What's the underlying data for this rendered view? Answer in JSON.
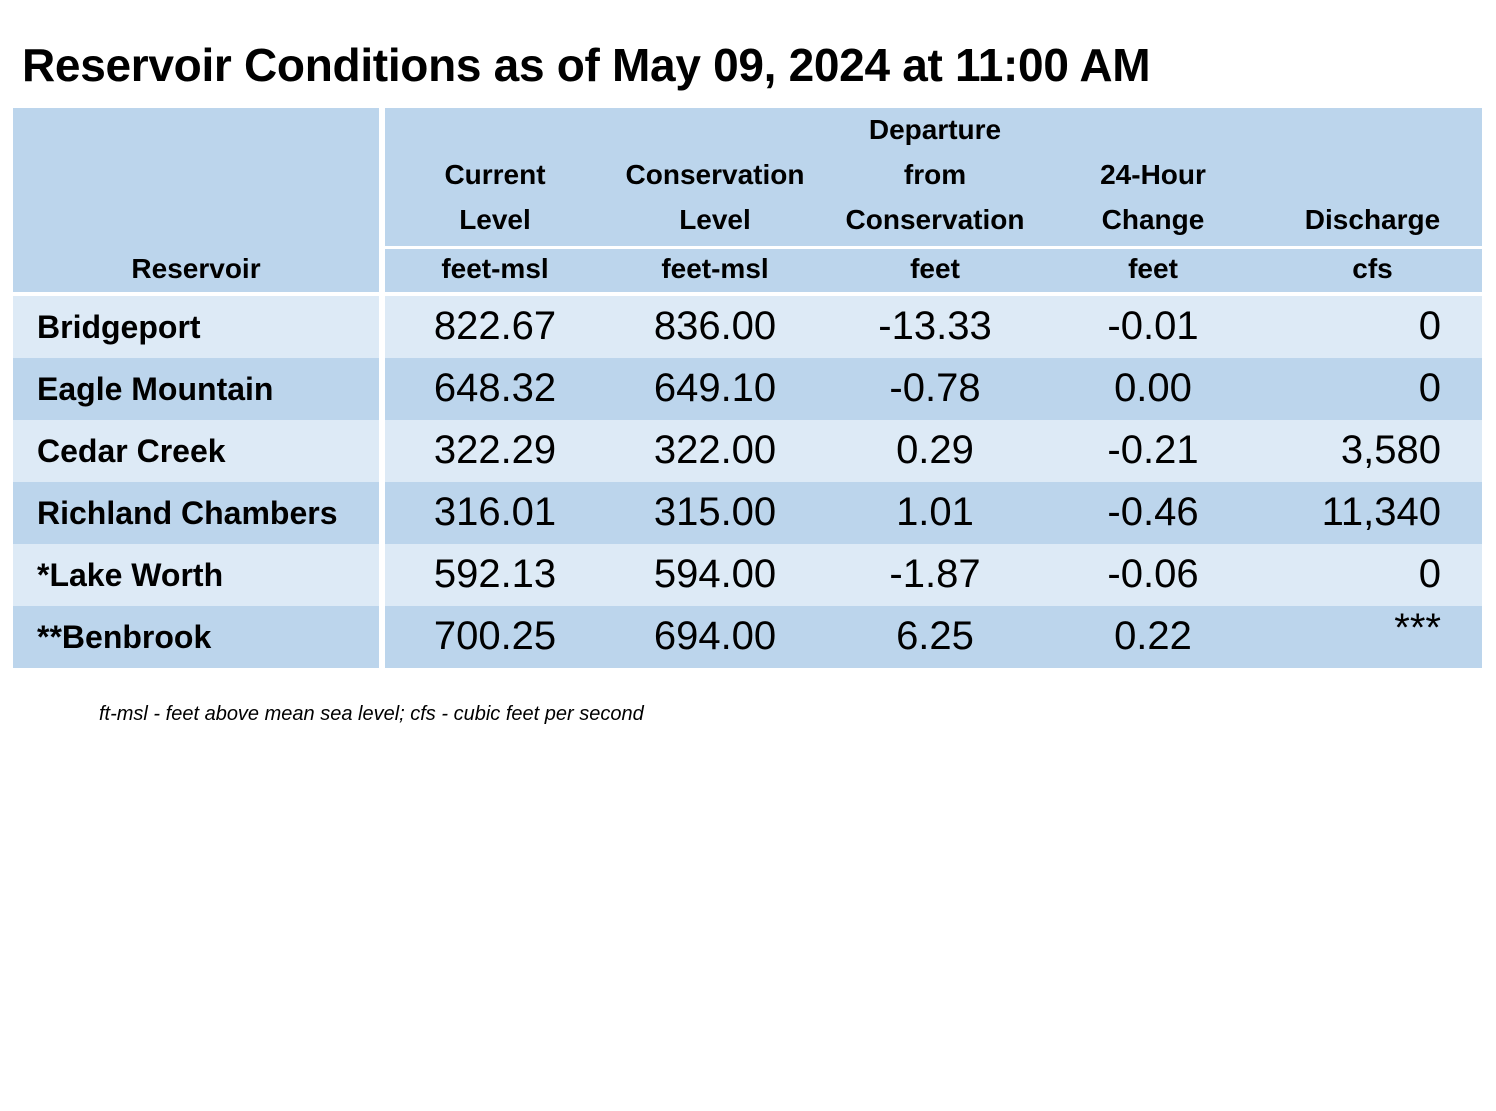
{
  "title": "Reservoir Conditions as of May 09, 2024 at 11:00 AM",
  "colors": {
    "header_bg": "#bcd5ec",
    "row_light": "#ddeaf6",
    "row_dark": "#bcd5ec"
  },
  "columns": [
    {
      "label_lines": [
        "Reservoir"
      ],
      "unit": ""
    },
    {
      "label_lines": [
        "Current",
        "Level"
      ],
      "unit": "feet-msl"
    },
    {
      "label_lines": [
        "Conservation",
        "Level"
      ],
      "unit": "feet-msl"
    },
    {
      "label_lines": [
        "Departure",
        "from",
        "Conservation"
      ],
      "unit": "feet"
    },
    {
      "label_lines": [
        "24-Hour",
        "Change"
      ],
      "unit": "feet"
    },
    {
      "label_lines": [
        "Discharge"
      ],
      "unit": "cfs"
    }
  ],
  "rows": [
    {
      "name": "Bridgeport",
      "current": "822.67",
      "conservation": "836.00",
      "departure": "-13.33",
      "change": "-0.01",
      "discharge": "0"
    },
    {
      "name": "Eagle Mountain",
      "current": "648.32",
      "conservation": "649.10",
      "departure": "-0.78",
      "change": "0.00",
      "discharge": "0"
    },
    {
      "name": "Cedar Creek",
      "current": "322.29",
      "conservation": "322.00",
      "departure": "0.29",
      "change": "-0.21",
      "discharge": "3,580"
    },
    {
      "name": "Richland Chambers",
      "current": "316.01",
      "conservation": "315.00",
      "departure": "1.01",
      "change": "-0.46",
      "discharge": "11,340"
    },
    {
      "name": "*Lake Worth",
      "current": "592.13",
      "conservation": "594.00",
      "departure": "-1.87",
      "change": "-0.06",
      "discharge": "0"
    },
    {
      "name": "**Benbrook",
      "current": "700.25",
      "conservation": "694.00",
      "departure": "6.25",
      "change": "0.22",
      "discharge": "***"
    }
  ],
  "footnote": "ft-msl - feet above mean sea level; cfs - cubic feet per second"
}
